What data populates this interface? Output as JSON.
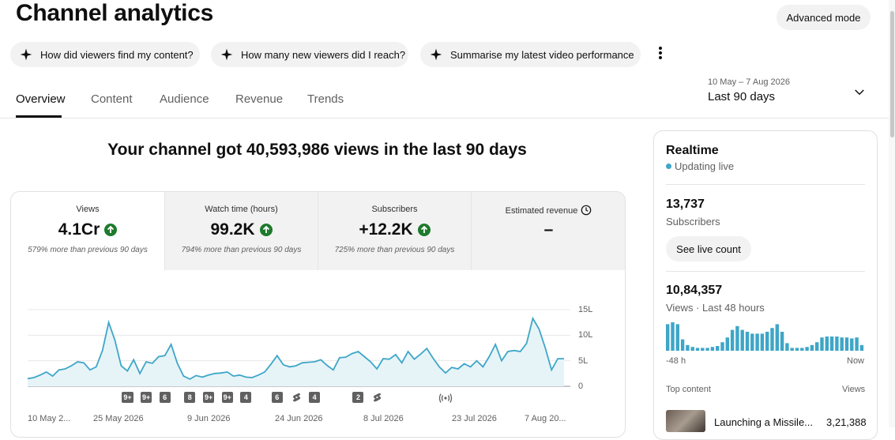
{
  "header": {
    "title": "Channel analytics",
    "advanced_mode_label": "Advanced mode"
  },
  "chips": [
    {
      "label": "How did viewers find my content?"
    },
    {
      "label": "How many new viewers did I reach?"
    },
    {
      "label": "Summarise my latest video performance"
    }
  ],
  "tabs": [
    {
      "label": "Overview",
      "active": true
    },
    {
      "label": "Content"
    },
    {
      "label": "Audience"
    },
    {
      "label": "Revenue"
    },
    {
      "label": "Trends"
    }
  ],
  "date_picker": {
    "range": "10 May – 7 Aug 2026",
    "value": "Last 90 days"
  },
  "summary": {
    "headline": "Your channel got 40,593,986 views in the last 90 days"
  },
  "metrics": [
    {
      "label": "Views",
      "value": "4.1Cr",
      "trend": "up",
      "sub": "579% more than previous 90 days"
    },
    {
      "label": "Watch time (hours)",
      "value": "99.2K",
      "trend": "up",
      "sub": "794% more than previous 90 days"
    },
    {
      "label": "Subscribers",
      "value": "+12.2K",
      "trend": "up",
      "sub": "725% more than previous 90 days"
    },
    {
      "label": "Estimated revenue",
      "value": "–",
      "icon": "clock-icon"
    }
  ],
  "chart_data": {
    "type": "area",
    "y_unit_labels": [
      "0",
      "5L",
      "10L",
      "15L"
    ],
    "ylim": [
      0,
      1500000
    ],
    "x_tick_labels": [
      "10 May 2...",
      "25 May 2026",
      "9 Jun 2026",
      "24 Jun 2026",
      "8 Jul 2026",
      "23 Jul 2026",
      "7 Aug 20..."
    ],
    "values": [
      150000,
      170000,
      220000,
      280000,
      200000,
      320000,
      340000,
      400000,
      480000,
      460000,
      320000,
      380000,
      700000,
      1250000,
      900000,
      400000,
      300000,
      520000,
      250000,
      480000,
      450000,
      580000,
      600000,
      820000,
      450000,
      200000,
      140000,
      210000,
      180000,
      220000,
      250000,
      260000,
      280000,
      200000,
      220000,
      180000,
      170000,
      220000,
      280000,
      430000,
      600000,
      420000,
      380000,
      400000,
      460000,
      470000,
      480000,
      520000,
      410000,
      320000,
      560000,
      570000,
      640000,
      680000,
      580000,
      480000,
      340000,
      540000,
      530000,
      620000,
      460000,
      680000,
      530000,
      630000,
      740000,
      550000,
      380000,
      260000,
      370000,
      340000,
      440000,
      380000,
      500000,
      380000,
      580000,
      820000,
      500000,
      680000,
      700000,
      680000,
      840000,
      1330000,
      1120000,
      750000,
      320000,
      540000,
      540000
    ],
    "markers": [
      {
        "label": "9+",
        "x_index": 16
      },
      {
        "label": "9+",
        "x_index": 19
      },
      {
        "label": "6",
        "x_index": 22
      },
      {
        "label": "8",
        "x_index": 26
      },
      {
        "label": "9+",
        "x_index": 29
      },
      {
        "label": "9+",
        "x_index": 32
      },
      {
        "label": "4",
        "x_index": 35
      },
      {
        "label": "6",
        "x_index": 40
      },
      {
        "label": "shorts-icon",
        "x_index": 43
      },
      {
        "label": "4",
        "x_index": 46
      },
      {
        "label": "2",
        "x_index": 53
      },
      {
        "label": "shorts-icon",
        "x_index": 56
      },
      {
        "label": "live-icon",
        "x_index": 67
      }
    ],
    "grid": true,
    "colors": {
      "line": "#3ea6c8",
      "fill": "#e6f4f8"
    }
  },
  "realtime": {
    "title": "Realtime",
    "status": "Updating live",
    "subscribers_value": "13,737",
    "subscribers_label": "Subscribers",
    "live_count_button": "See live count",
    "views_value": "10,84,357",
    "views_label": "Views · Last 48 hours",
    "axis_left": "-48 h",
    "axis_right": "Now",
    "bars": [
      28,
      30,
      28,
      12,
      6,
      4,
      3,
      3,
      3,
      4,
      5,
      9,
      14,
      22,
      26,
      22,
      20,
      18,
      18,
      18,
      20,
      24,
      28,
      20,
      8,
      3,
      3,
      3,
      4,
      6,
      9,
      14,
      15,
      15,
      15,
      14,
      14,
      13,
      14,
      6
    ],
    "top_content_label": "Top content",
    "views_col_label": "Views",
    "top_item": {
      "title": "Launching a Missile...",
      "views": "3,21,388"
    },
    "colors": {
      "bar": "#3ea6c8",
      "live_dot": "#3ea6c8"
    }
  }
}
